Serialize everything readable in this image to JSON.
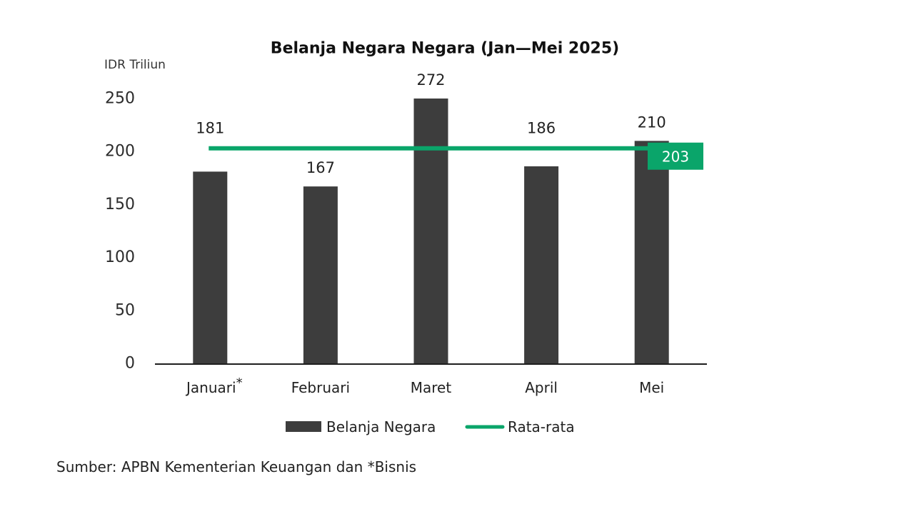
{
  "chart_data": {
    "type": "bar",
    "title": "Belanja Negara Negara (Jan—Mei 2025)",
    "ylabel": "IDR Triliun",
    "categories": [
      "Januari*",
      "Februari",
      "Maret",
      "April",
      "Mei"
    ],
    "series": [
      {
        "name": "Belanja Negara",
        "type": "bar",
        "values": [
          181,
          167,
          272,
          186,
          210
        ],
        "color": "#3d3d3d"
      },
      {
        "name": "Rata-rata",
        "type": "line",
        "values": [
          203,
          203,
          203,
          203,
          203
        ],
        "color": "#0aa56a"
      }
    ],
    "yticks": [
      0,
      50,
      100,
      150,
      200,
      250
    ],
    "ylim": [
      0,
      250
    ],
    "grid": false,
    "legend": "bottom-center",
    "data_labels": true
  },
  "source_note": "Sumber: APBN Kementerian Keuangan dan *Bisnis"
}
